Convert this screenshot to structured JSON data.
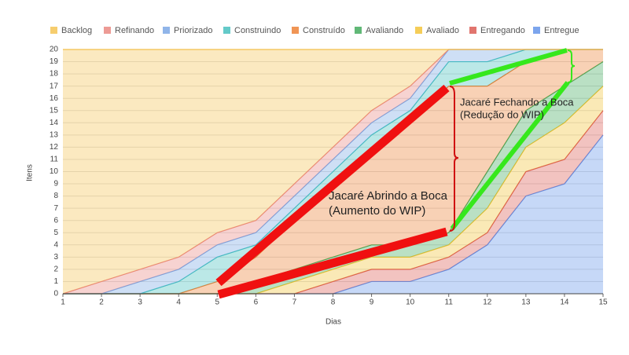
{
  "chart_data": {
    "type": "stacked_area",
    "x_label": "Dias",
    "y_label": "Itens",
    "x": [
      1,
      2,
      3,
      4,
      5,
      6,
      7,
      8,
      9,
      10,
      11,
      12,
      13,
      14,
      15
    ],
    "xlim": [
      1,
      15
    ],
    "xticks": [
      1,
      2,
      3,
      4,
      5,
      6,
      7,
      8,
      9,
      10,
      11,
      12,
      13,
      14,
      15
    ],
    "ylim": [
      0,
      20
    ],
    "yticks": [
      0,
      1,
      2,
      3,
      4,
      5,
      6,
      7,
      8,
      9,
      10,
      11,
      12,
      13,
      14,
      15,
      16,
      17,
      18,
      19,
      20
    ],
    "grid": true,
    "legend": "top",
    "series": [
      {
        "name": "Backlog",
        "color": "#f4c04a",
        "values": [
          20,
          19,
          18,
          17,
          15,
          14,
          11,
          8,
          5,
          3,
          0,
          0,
          0,
          0,
          0
        ]
      },
      {
        "name": "Refinando",
        "color": "#e9827a",
        "values": [
          0,
          1,
          1,
          1,
          1,
          1,
          1,
          1,
          1,
          1,
          0,
          0,
          0,
          0,
          0
        ]
      },
      {
        "name": "Priorizado",
        "color": "#74a3e3",
        "values": [
          0,
          0,
          1,
          1,
          1,
          1,
          1,
          1,
          1,
          1,
          1,
          1,
          0,
          0,
          0
        ]
      },
      {
        "name": "Construindo",
        "color": "#3dbdbb",
        "values": [
          0,
          0,
          0,
          1,
          2,
          1,
          1,
          1,
          1,
          1,
          2,
          2,
          1,
          0,
          0
        ]
      },
      {
        "name": "Construído",
        "color": "#ec7a2a",
        "values": [
          0,
          0,
          0,
          0,
          1,
          2,
          4,
          6,
          8,
          10,
          12,
          7,
          4,
          3,
          1
        ]
      },
      {
        "name": "Avaliando",
        "color": "#3aa655",
        "values": [
          0,
          0,
          0,
          0,
          0,
          1,
          1,
          1,
          1,
          1,
          1,
          3,
          3,
          3,
          2
        ]
      },
      {
        "name": "Avaliado",
        "color": "#f2c12e",
        "values": [
          0,
          0,
          0,
          0,
          0,
          0,
          1,
          1,
          1,
          1,
          1,
          2,
          2,
          3,
          2
        ]
      },
      {
        "name": "Entregando",
        "color": "#d9534a",
        "values": [
          0,
          0,
          0,
          0,
          0,
          0,
          0,
          1,
          1,
          1,
          1,
          1,
          2,
          2,
          2
        ]
      },
      {
        "name": "Entregue",
        "color": "#5b8ee8",
        "values": [
          0,
          0,
          0,
          0,
          0,
          0,
          0,
          0,
          1,
          1,
          2,
          4,
          8,
          9,
          13
        ]
      }
    ],
    "annotations": [
      {
        "lines": [
          "Jacaré Fechando a Boca",
          "(Redução do WIP)"
        ]
      },
      {
        "lines": [
          "Jacaré Abrindo a Boca",
          "(Aumento do WIP)"
        ]
      }
    ]
  }
}
